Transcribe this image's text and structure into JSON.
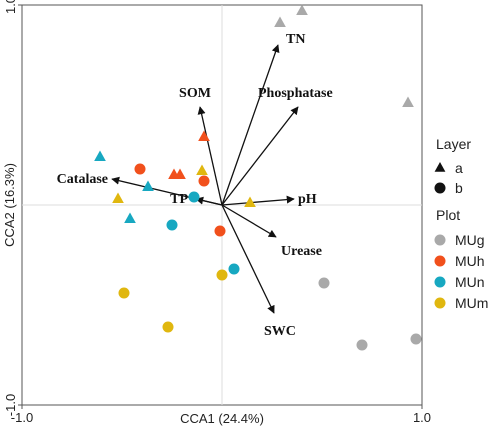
{
  "chart_data": {
    "type": "scatter",
    "subtype": "CCA biplot",
    "xlabel": "CCA1 (24.4%)",
    "ylabel": "CCA2 (16.3%)",
    "xlim": [
      -1.0,
      1.0
    ],
    "ylim": [
      -1.0,
      1.0
    ],
    "x_ticks": [
      "-1.0",
      "1.0"
    ],
    "y_ticks": [
      "1.0",
      "-1.0"
    ],
    "zero_reference_lines": true,
    "vectors": [
      {
        "name": "TN",
        "x": 0.28,
        "y": 0.8
      },
      {
        "name": "SOM",
        "x": -0.11,
        "y": 0.49
      },
      {
        "name": "Phosphatase",
        "x": 0.38,
        "y": 0.49
      },
      {
        "name": "Catalase",
        "x": -0.55,
        "y": 0.13
      },
      {
        "name": "TP",
        "x": -0.13,
        "y": 0.03
      },
      {
        "name": "pH",
        "x": 0.36,
        "y": 0.03
      },
      {
        "name": "Urease",
        "x": 0.27,
        "y": -0.16
      },
      {
        "name": "SWC",
        "x": 0.26,
        "y": -0.54
      }
    ],
    "legend": {
      "layer_title": "Layer",
      "layers": [
        {
          "label": "a",
          "shape": "triangle"
        },
        {
          "label": "b",
          "shape": "circle"
        }
      ],
      "plot_title": "Plot",
      "plots": [
        {
          "label": "MUg",
          "color": "#a9a9a9"
        },
        {
          "label": "MUh",
          "color": "#f1501c"
        },
        {
          "label": "MUn",
          "color": "#17a8c1"
        },
        {
          "label": "MUm",
          "color": "#e0b70f"
        }
      ]
    },
    "series": [
      {
        "name": "MUg",
        "color": "#a9a9a9",
        "points": [
          {
            "x": 0.29,
            "y": 0.91,
            "layer": "a"
          },
          {
            "x": 0.4,
            "y": 0.97,
            "layer": "a"
          },
          {
            "x": 0.93,
            "y": 0.51,
            "layer": "a"
          },
          {
            "x": 0.51,
            "y": -0.39,
            "layer": "b"
          },
          {
            "x": 0.7,
            "y": -0.7,
            "layer": "b"
          },
          {
            "x": 0.97,
            "y": -0.67,
            "layer": "b"
          }
        ]
      },
      {
        "name": "MUh",
        "color": "#f1501c",
        "points": [
          {
            "x": -0.09,
            "y": 0.34,
            "layer": "a"
          },
          {
            "x": -0.24,
            "y": 0.15,
            "layer": "a"
          },
          {
            "x": -0.21,
            "y": 0.15,
            "layer": "a"
          },
          {
            "x": -0.41,
            "y": 0.18,
            "layer": "b"
          },
          {
            "x": -0.09,
            "y": 0.12,
            "layer": "b"
          },
          {
            "x": -0.01,
            "y": -0.13,
            "layer": "b"
          }
        ]
      },
      {
        "name": "MUn",
        "color": "#17a8c1",
        "points": [
          {
            "x": -0.61,
            "y": 0.24,
            "layer": "a"
          },
          {
            "x": -0.37,
            "y": 0.09,
            "layer": "a"
          },
          {
            "x": -0.46,
            "y": -0.07,
            "layer": "a"
          },
          {
            "x": -0.14,
            "y": 0.04,
            "layer": "b"
          },
          {
            "x": -0.25,
            "y": -0.1,
            "layer": "b"
          },
          {
            "x": 0.06,
            "y": -0.32,
            "layer": "b"
          }
        ]
      },
      {
        "name": "MUm",
        "color": "#e0b70f",
        "points": [
          {
            "x": -0.52,
            "y": 0.03,
            "layer": "a"
          },
          {
            "x": -0.1,
            "y": 0.17,
            "layer": "a"
          },
          {
            "x": 0.14,
            "y": 0.01,
            "layer": "a"
          },
          {
            "x": -0.49,
            "y": -0.44,
            "layer": "b"
          },
          {
            "x": -0.27,
            "y": -0.61,
            "layer": "b"
          },
          {
            "x": 0.0,
            "y": -0.35,
            "layer": "b"
          }
        ]
      }
    ]
  }
}
